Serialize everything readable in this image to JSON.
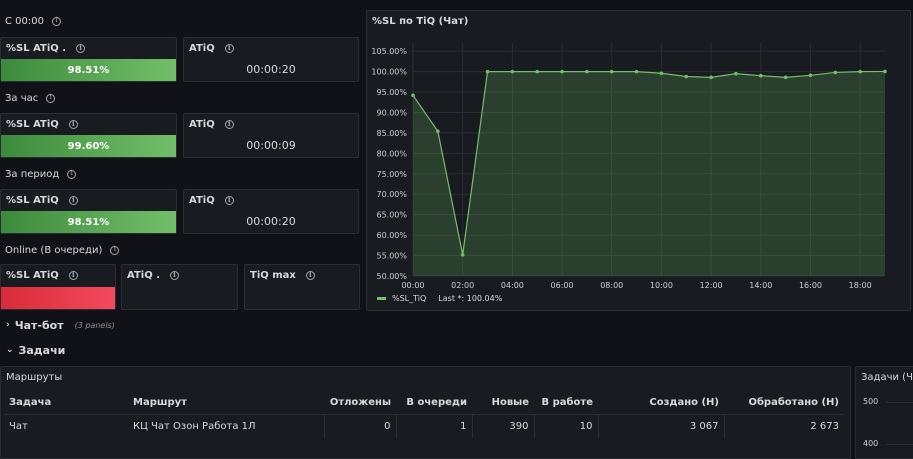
{
  "row1": {
    "title": "С 00:00",
    "sl": {
      "label": "%SL ATiQ .",
      "value": "98.51%"
    },
    "atiq": {
      "label": "ATiQ",
      "value": "00:00:20"
    }
  },
  "row2": {
    "title": "За час",
    "sl": {
      "label": "%SL ATiQ",
      "value": "99.60%"
    },
    "atiq": {
      "label": "ATiQ",
      "value": "00:00:09"
    }
  },
  "row3": {
    "title": "За период",
    "sl": {
      "label": "%SL ATiQ",
      "value": "98.51%"
    },
    "atiq": {
      "label": "ATiQ",
      "value": "00:00:20"
    }
  },
  "row4": {
    "title": "Online (В очереди)",
    "sl": {
      "label": "%SL ATiQ",
      "value": ""
    },
    "atiq": {
      "label": "ATiQ ."
    },
    "tiq": {
      "label": "TiQ max"
    }
  },
  "chat_panel": {
    "title": "%SL по TiQ (Чат)",
    "legend_name": "%SL_TiQ",
    "legend_last": "Last *: 100.04%"
  },
  "chart_data": {
    "type": "area",
    "title": "%SL по TiQ (Чат)",
    "x": [
      "00:00",
      "01:00",
      "02:00",
      "03:00",
      "04:00",
      "05:00",
      "06:00",
      "07:00",
      "08:00",
      "09:00",
      "10:00",
      "11:00",
      "12:00",
      "13:00",
      "14:00",
      "15:00",
      "16:00",
      "17:00",
      "18:00",
      "19:00"
    ],
    "xticks": [
      "00:00",
      "02:00",
      "04:00",
      "06:00",
      "08:00",
      "10:00",
      "12:00",
      "14:00",
      "16:00",
      "18:00"
    ],
    "yticks": [
      "50.00%",
      "55.00%",
      "60.00%",
      "65.00%",
      "70.00%",
      "75.00%",
      "80.00%",
      "85.00%",
      "90.00%",
      "95.00%",
      "100.00%",
      "105.00%"
    ],
    "ylim": [
      50,
      107
    ],
    "grid": true,
    "legend_position": "bottom-left",
    "series": [
      {
        "name": "%SL_TiQ",
        "color": "#73bf69",
        "values": [
          94.2,
          85.4,
          55.2,
          100.0,
          100.0,
          100.0,
          100.0,
          100.0,
          100.0,
          100.0,
          99.6,
          98.8,
          98.6,
          99.5,
          99.0,
          98.6,
          99.1,
          99.8,
          100.0,
          100.04
        ]
      }
    ]
  },
  "sections": {
    "chatbot": {
      "label": "Чат-бот",
      "sub": "(3 panels)"
    },
    "tasks": {
      "label": "Задачи"
    }
  },
  "routes_panel": {
    "title": "Маршруты",
    "columns": [
      "Задача",
      "Маршрут",
      "Отложены",
      "В очереди",
      "Новые",
      "В работе",
      "Создано (Н)",
      "Обработано (Н)"
    ],
    "rows": [
      [
        "Чат",
        "КЦ Чат Озон Работа 1Л",
        "0",
        "1",
        "390",
        "10",
        "3 067",
        "2 673"
      ]
    ]
  },
  "tasks_panel": {
    "title": "Задачи (Ча",
    "yticks": [
      "500",
      "400"
    ]
  },
  "colors": {
    "green": "#73bf69",
    "red": "#f2495c",
    "bg": "#111217",
    "panel": "#181b1f"
  }
}
